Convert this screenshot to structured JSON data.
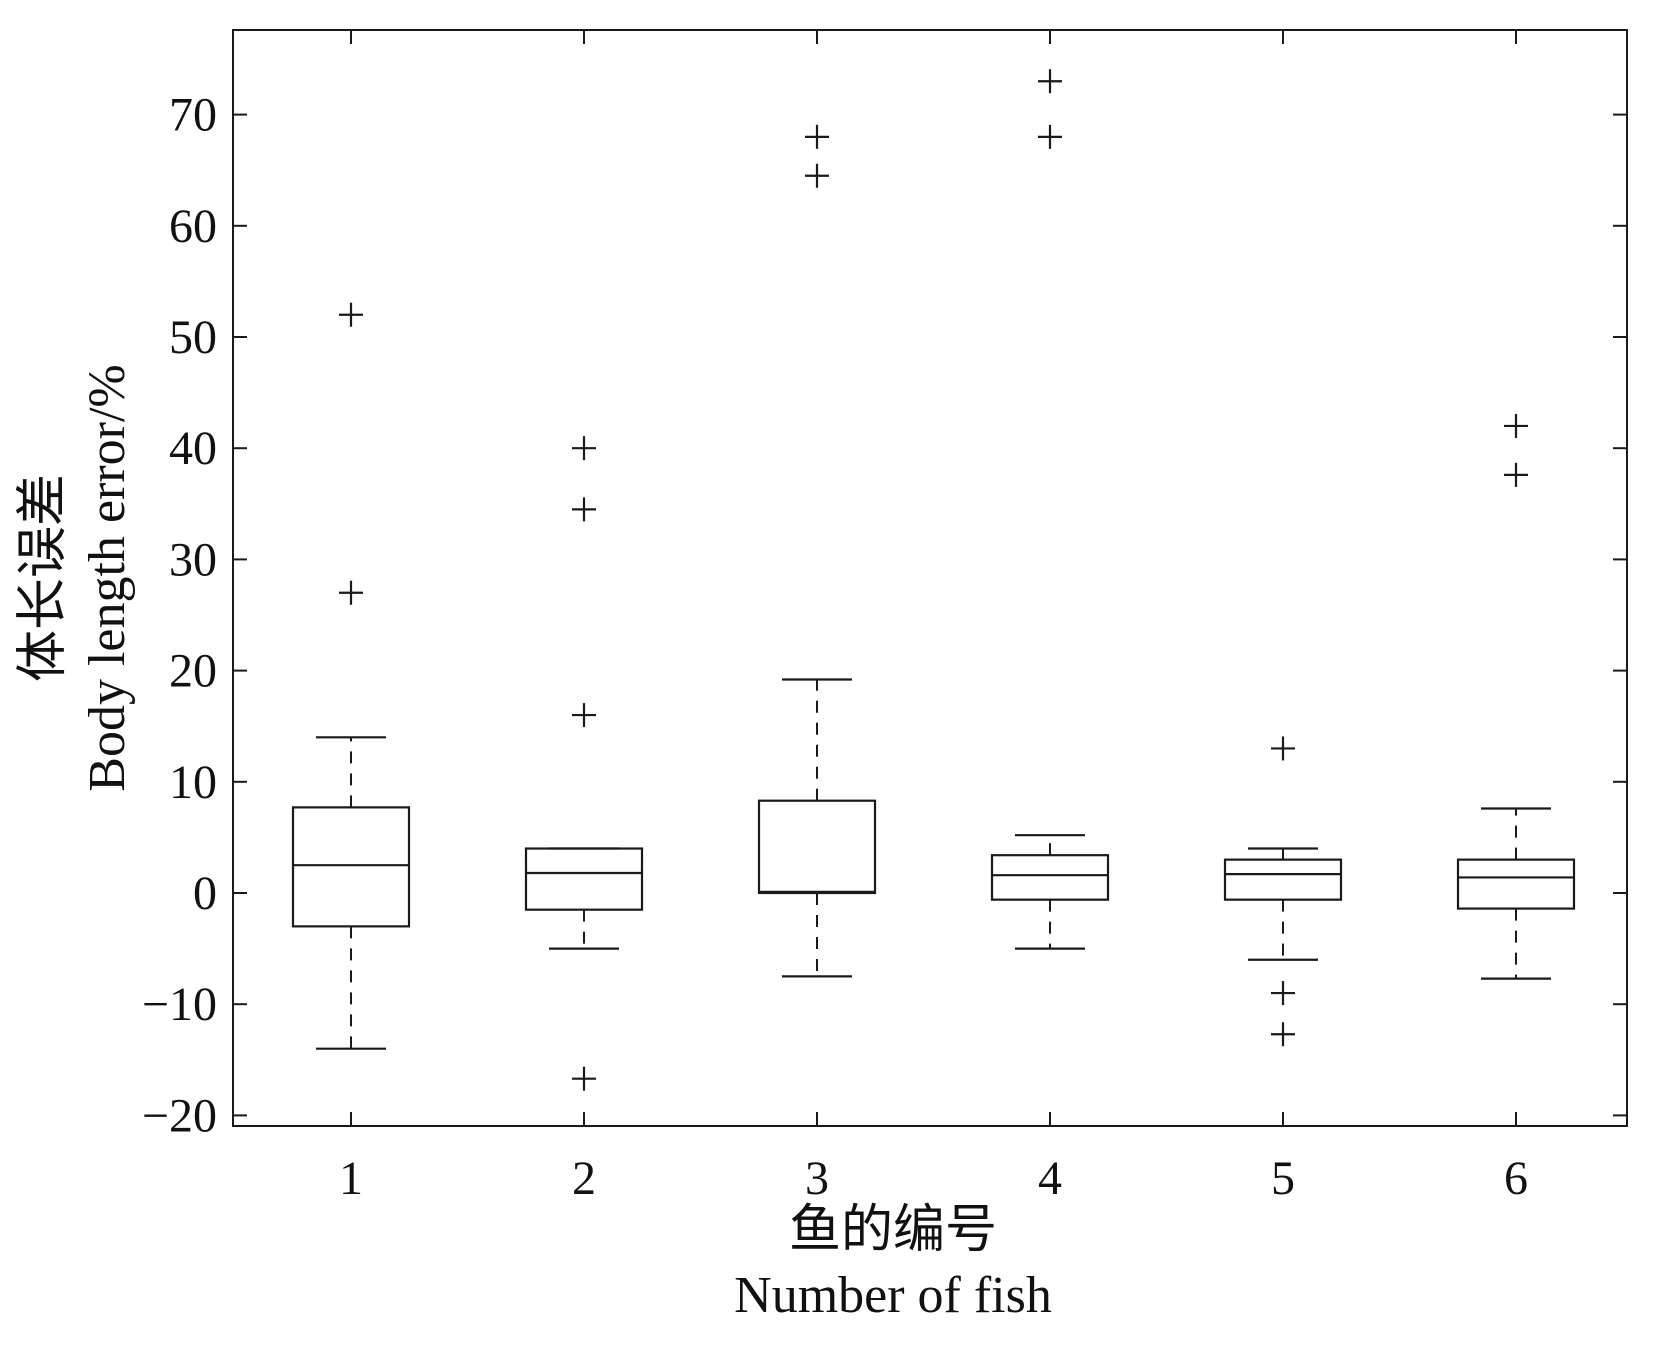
{
  "chart_data": {
    "type": "box",
    "xlabel_cn": "鱼的编号",
    "xlabel_en": "Number of fish",
    "ylabel_cn": "体长误差",
    "ylabel_en": "Body length error/%",
    "categories": [
      "1",
      "2",
      "3",
      "4",
      "5",
      "6"
    ],
    "yticks": [
      "−20",
      "−10",
      "0",
      "10",
      "20",
      "30",
      "40",
      "50",
      "60",
      "70"
    ],
    "ylim": [
      -21,
      77.5
    ],
    "grid": false,
    "boxes": [
      {
        "category": "1",
        "whisker_low": -14,
        "q1": -3,
        "median": 2.5,
        "q3": 7.7,
        "whisker_high": 14,
        "outliers": [
          52,
          27
        ]
      },
      {
        "category": "2",
        "whisker_low": -5,
        "q1": -1.5,
        "median": 1.8,
        "q3": 4,
        "whisker_high": 4,
        "outliers": [
          40,
          34.5,
          16,
          -16.7
        ]
      },
      {
        "category": "3",
        "whisker_low": -7.5,
        "q1": 0,
        "median": 0.1,
        "q3": 8.3,
        "whisker_high": 19.2,
        "outliers": [
          68,
          64.5
        ]
      },
      {
        "category": "4",
        "whisker_low": -5,
        "q1": -0.6,
        "median": 1.6,
        "q3": 3.4,
        "whisker_high": 5.2,
        "outliers": [
          73,
          68
        ]
      },
      {
        "category": "5",
        "whisker_low": -6,
        "q1": -0.6,
        "median": 1.7,
        "q3": 3,
        "whisker_high": 4,
        "outliers": [
          13,
          -9,
          -12.7
        ]
      },
      {
        "category": "6",
        "whisker_low": -7.7,
        "q1": -1.4,
        "median": 1.4,
        "q3": 3,
        "whisker_high": 7.6,
        "outliers": [
          42,
          37.6
        ]
      }
    ],
    "colors": {
      "line": "#1a1a1a",
      "background": "#ffffff"
    }
  }
}
